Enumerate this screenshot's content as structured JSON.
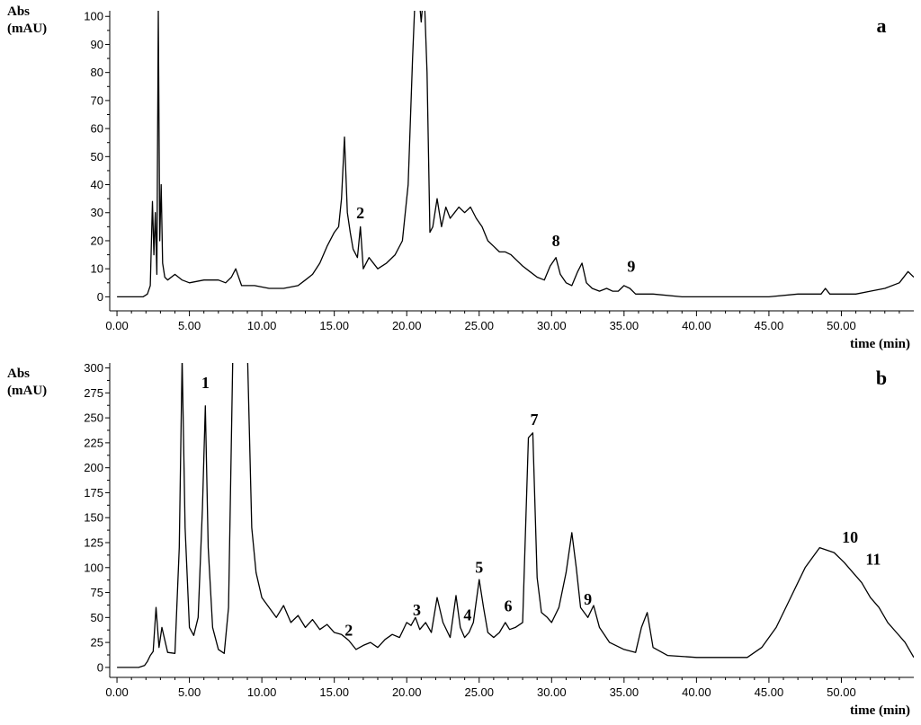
{
  "chart_data": [
    {
      "type": "line",
      "panel_label": "a",
      "ylabel_line1": "Abs",
      "ylabel_line2": "(mAU)",
      "xlabel": "time (min)",
      "xlim": [
        -0.5,
        55
      ],
      "ylim": [
        -5,
        102
      ],
      "x_ticks": [
        "0.00",
        "5.00",
        "10.00",
        "15.00",
        "20.00",
        "25.00",
        "30.00",
        "35.00",
        "40.00",
        "45.00",
        "50.00"
      ],
      "y_ticks": [
        "0",
        "10",
        "20",
        "30",
        "40",
        "50",
        "60",
        "70",
        "80",
        "90",
        "100"
      ],
      "peak_labels": [
        {
          "text": "2",
          "x": 16.8,
          "y": 28
        },
        {
          "text": "8",
          "x": 30.3,
          "y": 18
        },
        {
          "text": "9",
          "x": 35.5,
          "y": 9
        }
      ],
      "series": [
        {
          "x": [
            0,
            1,
            1.8,
            2.1,
            2.3,
            2.45,
            2.55,
            2.65,
            2.75,
            2.85,
            2.95,
            3.05,
            3.15,
            3.3,
            3.5,
            4.0,
            4.5,
            5.0,
            6.0,
            7.0,
            7.5,
            7.9,
            8.2,
            8.6,
            9.5,
            10.5,
            11.0,
            11.5,
            12.5,
            13.0,
            13.5,
            14.0,
            14.5,
            15.0,
            15.3,
            15.5,
            15.7,
            15.9,
            16.1,
            16.3,
            16.6,
            16.8,
            17.0,
            17.4,
            18.0,
            18.6,
            19.2,
            19.7,
            20.1,
            20.4,
            20.6,
            20.8,
            21.0,
            21.2,
            21.4,
            21.6,
            21.8,
            22.1,
            22.4,
            22.7,
            23.0,
            23.3,
            23.6,
            24.0,
            24.4,
            24.8,
            25.2,
            25.6,
            26.0,
            26.4,
            26.8,
            27.2,
            27.6,
            28.0,
            28.5,
            29.0,
            29.5,
            29.9,
            30.3,
            30.6,
            31.0,
            31.4,
            31.8,
            32.1,
            32.4,
            32.8,
            33.3,
            33.8,
            34.2,
            34.6,
            35.0,
            35.4,
            35.8,
            36.3,
            37,
            39,
            41,
            43,
            45,
            47,
            48.6,
            48.9,
            49.2,
            50,
            51,
            52,
            53,
            54,
            54.6,
            55
          ],
          "y": [
            0,
            0,
            0,
            1,
            4,
            34,
            15,
            30,
            8,
            102,
            20,
            40,
            12,
            7,
            6,
            8,
            6,
            5,
            6,
            6,
            5,
            7,
            10,
            4,
            4,
            3,
            3,
            3,
            4,
            6,
            8,
            12,
            18,
            23,
            25,
            35,
            57,
            30,
            23,
            17,
            14,
            25,
            10,
            14,
            10,
            12,
            15,
            20,
            40,
            85,
            110,
            110,
            98,
            110,
            80,
            23,
            25,
            35,
            25,
            32,
            28,
            30,
            32,
            30,
            32,
            28,
            25,
            20,
            18,
            16,
            16,
            15,
            13,
            11,
            9,
            7,
            6,
            11,
            14,
            8,
            5,
            4,
            9,
            12,
            5,
            3,
            2,
            3,
            2,
            2,
            4,
            3,
            1,
            1,
            1,
            0,
            0,
            0,
            0,
            1,
            1,
            3,
            1,
            1,
            1,
            2,
            3,
            5,
            9,
            7
          ]
        }
      ]
    },
    {
      "type": "line",
      "panel_label": "b",
      "ylabel_line1": "Abs",
      "ylabel_line2": "(mAU)",
      "xlabel": "time (min)",
      "xlim": [
        -0.5,
        55
      ],
      "ylim": [
        -10,
        305
      ],
      "x_ticks": [
        "0.00",
        "5.00",
        "10.00",
        "15.00",
        "20.00",
        "25.00",
        "30.00",
        "35.00",
        "40.00",
        "45.00",
        "50.00"
      ],
      "y_ticks": [
        "0",
        "25",
        "50",
        "75",
        "100",
        "125",
        "150",
        "175",
        "200",
        "225",
        "250",
        "275",
        "300"
      ],
      "peak_labels": [
        {
          "text": "1",
          "x": 6.1,
          "y": 280
        },
        {
          "text": "2",
          "x": 16.0,
          "y": 32
        },
        {
          "text": "3",
          "x": 20.7,
          "y": 52
        },
        {
          "text": "4",
          "x": 24.2,
          "y": 47
        },
        {
          "text": "5",
          "x": 25.0,
          "y": 95
        },
        {
          "text": "6",
          "x": 27.0,
          "y": 56
        },
        {
          "text": "7",
          "x": 28.8,
          "y": 243
        },
        {
          "text": "9",
          "x": 32.5,
          "y": 63
        },
        {
          "text": "10",
          "x": 50.6,
          "y": 125
        },
        {
          "text": "11",
          "x": 52.2,
          "y": 103
        }
      ],
      "series": [
        {
          "x": [
            0,
            1.5,
            1.9,
            2.1,
            2.3,
            2.5,
            2.7,
            2.9,
            3.1,
            3.5,
            4.0,
            4.3,
            4.5,
            4.7,
            5.0,
            5.3,
            5.6,
            5.9,
            6.1,
            6.3,
            6.6,
            7.0,
            7.4,
            7.7,
            8.0,
            8.5,
            9.0,
            9.3,
            9.6,
            10.0,
            10.5,
            11.0,
            11.5,
            12.0,
            12.5,
            13.0,
            13.5,
            14.0,
            14.5,
            15.0,
            15.5,
            16.0,
            16.5,
            17.0,
            17.5,
            18.0,
            18.5,
            19.0,
            19.5,
            20.0,
            20.3,
            20.6,
            20.9,
            21.3,
            21.7,
            22.1,
            22.5,
            23.0,
            23.4,
            23.7,
            24.0,
            24.3,
            24.6,
            25.0,
            25.3,
            25.6,
            26.0,
            26.4,
            26.8,
            27.1,
            27.5,
            28.0,
            28.4,
            28.7,
            29.0,
            29.3,
            29.7,
            30.0,
            30.5,
            31.0,
            31.4,
            31.7,
            32.0,
            32.5,
            32.9,
            33.3,
            34.0,
            35.0,
            35.8,
            36.2,
            36.6,
            37.0,
            38,
            40,
            42,
            43.5,
            44.5,
            45.5,
            46.5,
            47.5,
            48.5,
            49.5,
            50.2,
            50.8,
            51.4,
            52.0,
            52.6,
            53.2,
            53.8,
            54.4,
            55.0
          ],
          "y": [
            0,
            0,
            2,
            6,
            12,
            16,
            60,
            20,
            40,
            15,
            14,
            120,
            310,
            140,
            40,
            32,
            50,
            160,
            262,
            120,
            40,
            18,
            14,
            60,
            315,
            330,
            320,
            140,
            95,
            70,
            60,
            50,
            62,
            45,
            52,
            40,
            48,
            38,
            43,
            35,
            33,
            27,
            18,
            22,
            25,
            20,
            28,
            33,
            30,
            45,
            42,
            50,
            38,
            45,
            35,
            70,
            45,
            30,
            72,
            40,
            30,
            35,
            45,
            88,
            60,
            35,
            30,
            35,
            45,
            38,
            40,
            45,
            230,
            235,
            90,
            55,
            50,
            45,
            60,
            95,
            135,
            100,
            60,
            50,
            62,
            40,
            25,
            18,
            15,
            40,
            55,
            20,
            12,
            10,
            10,
            10,
            20,
            40,
            70,
            100,
            120,
            115,
            105,
            95,
            85,
            70,
            60,
            45,
            35,
            25,
            10
          ]
        }
      ]
    }
  ]
}
